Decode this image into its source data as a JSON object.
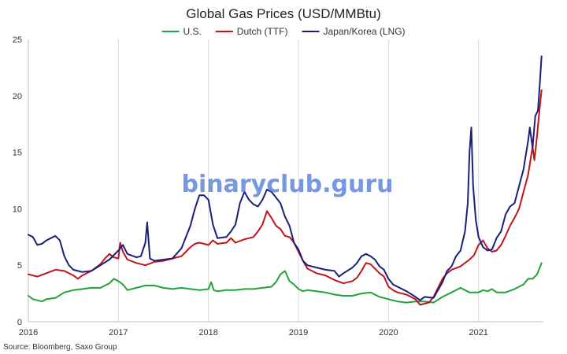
{
  "chart_data": {
    "type": "line",
    "title": "Global Gas Prices (USD/MMBtu)",
    "source": "Source: Bloomberg, Saxo Group",
    "watermark": "binaryclub.guru",
    "xlabel": "",
    "ylabel": "",
    "xlim": [
      2016.0,
      2021.72
    ],
    "ylim": [
      0,
      25
    ],
    "y_ticks": [
      0,
      5,
      10,
      15,
      20,
      25
    ],
    "x_ticks": [
      2016,
      2017,
      2018,
      2019,
      2020,
      2021
    ],
    "grid": "vertical-at-years",
    "legend": "top-center",
    "series": [
      {
        "name": "U.S.",
        "color": "#22a33a",
        "points": [
          [
            2016.0,
            2.3
          ],
          [
            2016.05,
            2.0
          ],
          [
            2016.1,
            1.9
          ],
          [
            2016.15,
            1.8
          ],
          [
            2016.2,
            2.0
          ],
          [
            2016.3,
            2.1
          ],
          [
            2016.4,
            2.6
          ],
          [
            2016.5,
            2.8
          ],
          [
            2016.6,
            2.9
          ],
          [
            2016.7,
            3.0
          ],
          [
            2016.8,
            3.0
          ],
          [
            2016.9,
            3.4
          ],
          [
            2016.95,
            3.8
          ],
          [
            2017.0,
            3.6
          ],
          [
            2017.05,
            3.3
          ],
          [
            2017.1,
            2.8
          ],
          [
            2017.2,
            3.0
          ],
          [
            2017.3,
            3.2
          ],
          [
            2017.4,
            3.2
          ],
          [
            2017.5,
            3.0
          ],
          [
            2017.6,
            2.9
          ],
          [
            2017.7,
            3.0
          ],
          [
            2017.8,
            2.9
          ],
          [
            2017.9,
            2.8
          ],
          [
            2018.0,
            2.9
          ],
          [
            2018.03,
            3.5
          ],
          [
            2018.06,
            2.8
          ],
          [
            2018.1,
            2.7
          ],
          [
            2018.2,
            2.8
          ],
          [
            2018.3,
            2.8
          ],
          [
            2018.4,
            2.9
          ],
          [
            2018.5,
            2.9
          ],
          [
            2018.6,
            3.0
          ],
          [
            2018.7,
            3.1
          ],
          [
            2018.75,
            3.5
          ],
          [
            2018.8,
            4.2
          ],
          [
            2018.85,
            4.5
          ],
          [
            2018.9,
            3.6
          ],
          [
            2018.95,
            3.3
          ],
          [
            2019.0,
            2.9
          ],
          [
            2019.05,
            2.7
          ],
          [
            2019.1,
            2.8
          ],
          [
            2019.2,
            2.7
          ],
          [
            2019.3,
            2.6
          ],
          [
            2019.4,
            2.4
          ],
          [
            2019.5,
            2.3
          ],
          [
            2019.6,
            2.3
          ],
          [
            2019.7,
            2.5
          ],
          [
            2019.8,
            2.6
          ],
          [
            2019.9,
            2.2
          ],
          [
            2020.0,
            2.0
          ],
          [
            2020.1,
            1.8
          ],
          [
            2020.2,
            1.7
          ],
          [
            2020.3,
            1.8
          ],
          [
            2020.4,
            1.8
          ],
          [
            2020.5,
            1.7
          ],
          [
            2020.6,
            2.2
          ],
          [
            2020.7,
            2.6
          ],
          [
            2020.8,
            3.0
          ],
          [
            2020.85,
            2.8
          ],
          [
            2020.9,
            2.6
          ],
          [
            2021.0,
            2.6
          ],
          [
            2021.05,
            2.8
          ],
          [
            2021.1,
            2.7
          ],
          [
            2021.15,
            2.9
          ],
          [
            2021.2,
            2.6
          ],
          [
            2021.3,
            2.6
          ],
          [
            2021.4,
            2.9
          ],
          [
            2021.5,
            3.3
          ],
          [
            2021.55,
            3.8
          ],
          [
            2021.6,
            3.8
          ],
          [
            2021.65,
            4.2
          ],
          [
            2021.7,
            5.2
          ]
        ]
      },
      {
        "name": "Dutch (TTF)",
        "color": "#c0141c",
        "points": [
          [
            2016.0,
            4.2
          ],
          [
            2016.1,
            4.0
          ],
          [
            2016.2,
            4.3
          ],
          [
            2016.3,
            4.6
          ],
          [
            2016.4,
            4.5
          ],
          [
            2016.5,
            4.1
          ],
          [
            2016.55,
            3.8
          ],
          [
            2016.6,
            4.1
          ],
          [
            2016.7,
            4.5
          ],
          [
            2016.8,
            5.1
          ],
          [
            2016.85,
            5.6
          ],
          [
            2016.9,
            6.0
          ],
          [
            2016.95,
            5.7
          ],
          [
            2017.0,
            5.6
          ],
          [
            2017.02,
            7.0
          ],
          [
            2017.05,
            6.2
          ],
          [
            2017.1,
            5.5
          ],
          [
            2017.2,
            5.2
          ],
          [
            2017.3,
            5.0
          ],
          [
            2017.4,
            5.3
          ],
          [
            2017.5,
            5.4
          ],
          [
            2017.6,
            5.6
          ],
          [
            2017.7,
            5.8
          ],
          [
            2017.75,
            6.2
          ],
          [
            2017.8,
            6.6
          ],
          [
            2017.85,
            6.9
          ],
          [
            2017.9,
            7.0
          ],
          [
            2018.0,
            6.8
          ],
          [
            2018.05,
            7.2
          ],
          [
            2018.1,
            6.9
          ],
          [
            2018.2,
            7.0
          ],
          [
            2018.25,
            7.4
          ],
          [
            2018.3,
            7.0
          ],
          [
            2018.4,
            7.3
          ],
          [
            2018.5,
            7.5
          ],
          [
            2018.55,
            8.0
          ],
          [
            2018.6,
            8.6
          ],
          [
            2018.65,
            9.8
          ],
          [
            2018.7,
            9.2
          ],
          [
            2018.75,
            8.5
          ],
          [
            2018.8,
            8.2
          ],
          [
            2018.85,
            7.6
          ],
          [
            2018.9,
            7.5
          ],
          [
            2018.95,
            7.0
          ],
          [
            2019.0,
            6.2
          ],
          [
            2019.05,
            5.4
          ],
          [
            2019.1,
            4.7
          ],
          [
            2019.15,
            4.5
          ],
          [
            2019.2,
            4.3
          ],
          [
            2019.3,
            4.1
          ],
          [
            2019.4,
            3.7
          ],
          [
            2019.5,
            3.4
          ],
          [
            2019.6,
            3.6
          ],
          [
            2019.65,
            3.9
          ],
          [
            2019.7,
            4.5
          ],
          [
            2019.75,
            5.2
          ],
          [
            2019.8,
            5.1
          ],
          [
            2019.9,
            4.3
          ],
          [
            2019.95,
            4.0
          ],
          [
            2020.0,
            3.1
          ],
          [
            2020.05,
            2.8
          ],
          [
            2020.1,
            2.6
          ],
          [
            2020.2,
            2.4
          ],
          [
            2020.3,
            2.0
          ],
          [
            2020.35,
            1.5
          ],
          [
            2020.4,
            1.6
          ],
          [
            2020.45,
            1.7
          ],
          [
            2020.5,
            2.2
          ],
          [
            2020.55,
            3.0
          ],
          [
            2020.6,
            3.8
          ],
          [
            2020.65,
            4.3
          ],
          [
            2020.7,
            4.6
          ],
          [
            2020.8,
            4.9
          ],
          [
            2020.9,
            5.5
          ],
          [
            2020.95,
            5.9
          ],
          [
            2021.0,
            6.8
          ],
          [
            2021.05,
            7.2
          ],
          [
            2021.1,
            6.5
          ],
          [
            2021.15,
            6.2
          ],
          [
            2021.2,
            6.3
          ],
          [
            2021.25,
            6.8
          ],
          [
            2021.3,
            7.6
          ],
          [
            2021.35,
            8.5
          ],
          [
            2021.4,
            9.2
          ],
          [
            2021.45,
            10.0
          ],
          [
            2021.5,
            11.5
          ],
          [
            2021.55,
            13.0
          ],
          [
            2021.6,
            15.5
          ],
          [
            2021.62,
            14.3
          ],
          [
            2021.65,
            16.5
          ],
          [
            2021.68,
            19.0
          ],
          [
            2021.7,
            20.5
          ]
        ]
      },
      {
        "name": "Japan/Korea (LNG)",
        "color": "#1a1f7a",
        "points": [
          [
            2016.0,
            7.7
          ],
          [
            2016.05,
            7.5
          ],
          [
            2016.1,
            6.8
          ],
          [
            2016.15,
            6.9
          ],
          [
            2016.2,
            7.2
          ],
          [
            2016.25,
            7.4
          ],
          [
            2016.3,
            7.6
          ],
          [
            2016.35,
            7.2
          ],
          [
            2016.4,
            5.8
          ],
          [
            2016.45,
            5.0
          ],
          [
            2016.5,
            4.6
          ],
          [
            2016.55,
            4.5
          ],
          [
            2016.6,
            4.4
          ],
          [
            2016.7,
            4.5
          ],
          [
            2016.8,
            5.0
          ],
          [
            2016.9,
            5.5
          ],
          [
            2017.0,
            6.3
          ],
          [
            2017.05,
            6.8
          ],
          [
            2017.1,
            6.0
          ],
          [
            2017.2,
            5.7
          ],
          [
            2017.25,
            5.8
          ],
          [
            2017.3,
            7.0
          ],
          [
            2017.32,
            8.8
          ],
          [
            2017.35,
            5.6
          ],
          [
            2017.4,
            5.4
          ],
          [
            2017.5,
            5.5
          ],
          [
            2017.6,
            5.6
          ],
          [
            2017.7,
            6.5
          ],
          [
            2017.8,
            8.5
          ],
          [
            2017.85,
            10.0
          ],
          [
            2017.9,
            11.2
          ],
          [
            2017.95,
            11.2
          ],
          [
            2018.0,
            10.8
          ],
          [
            2018.05,
            8.6
          ],
          [
            2018.1,
            7.4
          ],
          [
            2018.2,
            7.5
          ],
          [
            2018.25,
            8.0
          ],
          [
            2018.3,
            8.6
          ],
          [
            2018.35,
            10.5
          ],
          [
            2018.4,
            11.5
          ],
          [
            2018.45,
            10.8
          ],
          [
            2018.5,
            10.4
          ],
          [
            2018.55,
            10.2
          ],
          [
            2018.6,
            10.8
          ],
          [
            2018.65,
            11.7
          ],
          [
            2018.7,
            11.5
          ],
          [
            2018.75,
            11.0
          ],
          [
            2018.8,
            10.5
          ],
          [
            2018.85,
            9.3
          ],
          [
            2018.9,
            8.5
          ],
          [
            2018.95,
            7.0
          ],
          [
            2019.0,
            6.4
          ],
          [
            2019.05,
            5.4
          ],
          [
            2019.1,
            5.0
          ],
          [
            2019.2,
            4.8
          ],
          [
            2019.3,
            4.6
          ],
          [
            2019.4,
            4.5
          ],
          [
            2019.45,
            4.0
          ],
          [
            2019.5,
            4.3
          ],
          [
            2019.6,
            4.8
          ],
          [
            2019.65,
            5.2
          ],
          [
            2019.7,
            5.8
          ],
          [
            2019.75,
            6.0
          ],
          [
            2019.8,
            5.8
          ],
          [
            2019.85,
            5.5
          ],
          [
            2019.9,
            4.9
          ],
          [
            2019.95,
            4.6
          ],
          [
            2020.0,
            3.8
          ],
          [
            2020.05,
            3.3
          ],
          [
            2020.1,
            3.1
          ],
          [
            2020.15,
            2.9
          ],
          [
            2020.2,
            2.7
          ],
          [
            2020.3,
            2.2
          ],
          [
            2020.35,
            1.9
          ],
          [
            2020.4,
            2.2
          ],
          [
            2020.5,
            2.1
          ],
          [
            2020.55,
            2.8
          ],
          [
            2020.6,
            3.5
          ],
          [
            2020.65,
            4.5
          ],
          [
            2020.7,
            4.9
          ],
          [
            2020.75,
            5.8
          ],
          [
            2020.8,
            6.3
          ],
          [
            2020.85,
            8.0
          ],
          [
            2020.88,
            10.5
          ],
          [
            2020.9,
            15.0
          ],
          [
            2020.92,
            17.2
          ],
          [
            2020.94,
            12.0
          ],
          [
            2020.97,
            9.0
          ],
          [
            2021.0,
            7.5
          ],
          [
            2021.05,
            6.6
          ],
          [
            2021.1,
            6.3
          ],
          [
            2021.15,
            6.4
          ],
          [
            2021.2,
            7.4
          ],
          [
            2021.25,
            8.0
          ],
          [
            2021.3,
            9.5
          ],
          [
            2021.35,
            10.2
          ],
          [
            2021.4,
            10.5
          ],
          [
            2021.45,
            12.0
          ],
          [
            2021.5,
            13.5
          ],
          [
            2021.55,
            16.0
          ],
          [
            2021.57,
            17.2
          ],
          [
            2021.6,
            15.4
          ],
          [
            2021.63,
            18.2
          ],
          [
            2021.66,
            18.7
          ],
          [
            2021.68,
            21.0
          ],
          [
            2021.7,
            23.5
          ]
        ]
      }
    ]
  }
}
